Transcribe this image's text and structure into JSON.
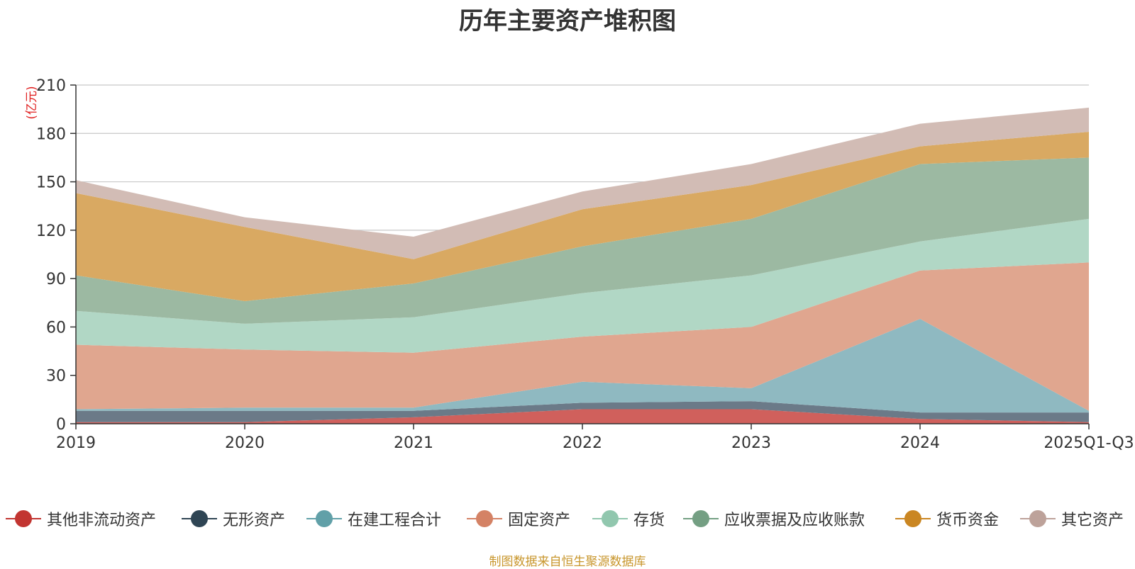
{
  "chart_data": {
    "type": "area",
    "stacked": true,
    "title": "历年主要资产堆积图",
    "ylabel": "(亿元)",
    "xlabel": "",
    "categories": [
      "2019",
      "2020",
      "2021",
      "2022",
      "2023",
      "2024",
      "2025Q1-Q3"
    ],
    "ylim": [
      0,
      210
    ],
    "yticks": [
      0,
      30,
      60,
      90,
      120,
      150,
      180,
      210
    ],
    "grid": true,
    "legend_position": "bottom",
    "series": [
      {
        "name": "其他非流动资产",
        "color": "#d0605c",
        "legend_color": "#c23531",
        "values": [
          1,
          1,
          4,
          9,
          9,
          3,
          1
        ]
      },
      {
        "name": "无形资产",
        "color": "#6b7a88",
        "legend_color": "#2f4554",
        "values": [
          7,
          7,
          4,
          4,
          5,
          4,
          6
        ]
      },
      {
        "name": "在建工程合计",
        "color": "#8fb9c1",
        "legend_color": "#61a0a8",
        "values": [
          1,
          2,
          2,
          13,
          8,
          58,
          1
        ]
      },
      {
        "name": "固定资产",
        "color": "#e0a68f",
        "legend_color": "#d48265",
        "values": [
          40,
          36,
          34,
          28,
          38,
          30,
          92
        ]
      },
      {
        "name": "存货",
        "color": "#b1d7c5",
        "legend_color": "#91c7ae",
        "values": [
          21,
          16,
          22,
          27,
          32,
          18,
          27
        ]
      },
      {
        "name": "应收票据及应收账款",
        "color": "#9cb9a2",
        "legend_color": "#749f83",
        "values": [
          22,
          14,
          21,
          29,
          35,
          48,
          38
        ]
      },
      {
        "name": "货币资金",
        "color": "#d9a962",
        "legend_color": "#ca8622",
        "values": [
          51,
          46,
          15,
          23,
          21,
          11,
          16
        ]
      },
      {
        "name": "其它资产",
        "color": "#d2bcb5",
        "legend_color": "#bda29a",
        "values": [
          8,
          6,
          14,
          11,
          13,
          14,
          15
        ]
      }
    ]
  },
  "source_note": "制图数据来自恒生聚源数据库"
}
